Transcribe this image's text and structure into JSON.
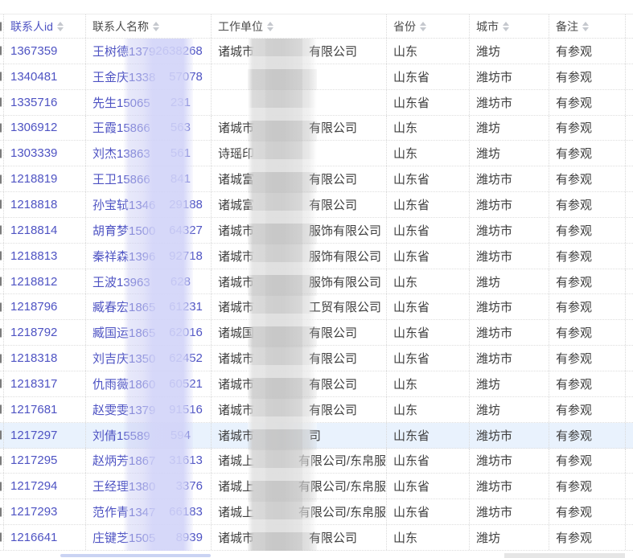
{
  "table": {
    "columns": [
      {
        "key": "id",
        "label": "联系人id",
        "sortable": true
      },
      {
        "key": "name",
        "label": "联系人名称",
        "sortable": true
      },
      {
        "key": "unit",
        "label": "工作单位",
        "sortable": true
      },
      {
        "key": "province",
        "label": "省份",
        "sortable": true
      },
      {
        "key": "city",
        "label": "城市",
        "sortable": true
      },
      {
        "key": "note",
        "label": "备注",
        "sortable": true
      }
    ],
    "colors": {
      "id_name_text": "#4e53c3",
      "body_text": "#3e3e3e",
      "header_text": "#4c4c4c",
      "highlight_row": "#e9f2fd",
      "name_redaction_band": "#d1d3f8",
      "unit_redaction_band": "#d6d6d6"
    },
    "rows": [
      {
        "id": "1367359",
        "name_pre": "王树德1379",
        "name_mid": "2638",
        "name_tail": "268",
        "unit_pre": "诸城市",
        "unit_tail": "有限公司",
        "province": "山东",
        "city": "潍坊",
        "note": "有参观",
        "highlight": false
      },
      {
        "id": "1340481",
        "name_pre": "王金庆1338",
        "name_mid": "",
        "name_tail": "57078",
        "unit_pre": "",
        "unit_tail": "",
        "province": "山东省",
        "city": "潍坊市",
        "note": "有参观",
        "highlight": false
      },
      {
        "id": "1335716",
        "name_pre": "先生15065",
        "name_mid": "",
        "name_tail": "231",
        "unit_pre": "",
        "unit_tail": "",
        "province": "山东省",
        "city": "潍坊市",
        "note": "有参观",
        "highlight": false
      },
      {
        "id": "1306912",
        "name_pre": "王霞15866",
        "name_mid": "",
        "name_tail": "563",
        "unit_pre": "诸城市",
        "unit_tail": "有限公司",
        "province": "山东",
        "city": "潍坊",
        "note": "有参观",
        "highlight": false
      },
      {
        "id": "1303339",
        "name_pre": "刘杰13863",
        "name_mid": "",
        "name_tail": "561",
        "unit_pre": "诗瑶印",
        "unit_tail": "",
        "province": "山东",
        "city": "潍坊",
        "note": "有参观",
        "highlight": false
      },
      {
        "id": "1218819",
        "name_pre": "王卫15866",
        "name_mid": "",
        "name_tail": "841",
        "unit_pre": "诸城富",
        "unit_tail": "有限公司",
        "province": "山东省",
        "city": "潍坊市",
        "note": "有参观",
        "highlight": false
      },
      {
        "id": "1218818",
        "name_pre": "孙宝轼1346",
        "name_mid": "",
        "name_tail": "29188",
        "unit_pre": "诸城富",
        "unit_tail": "有限公司",
        "province": "山东省",
        "city": "潍坊市",
        "note": "有参观",
        "highlight": false
      },
      {
        "id": "1218814",
        "name_pre": "胡育梦1500",
        "name_mid": "",
        "name_tail": "64327",
        "unit_pre": "诸城市",
        "unit_tail": "服饰有限公司",
        "province": "山东省",
        "city": "潍坊市",
        "note": "有参观",
        "highlight": false
      },
      {
        "id": "1218813",
        "name_pre": "秦祥森1396",
        "name_mid": "",
        "name_tail": "92718",
        "unit_pre": "诸城市",
        "unit_tail": "服饰有限公司",
        "province": "山东省",
        "city": "潍坊市",
        "note": "有参观",
        "highlight": false
      },
      {
        "id": "1218812",
        "name_pre": "王波13963",
        "name_mid": "",
        "name_tail": "628",
        "unit_pre": "诸城市",
        "unit_tail": "服饰有限公司",
        "province": "山东",
        "city": "潍坊",
        "note": "有参观",
        "highlight": false
      },
      {
        "id": "1218796",
        "name_pre": "臧春宏1865",
        "name_mid": "",
        "name_tail": "61231",
        "unit_pre": "诸城市",
        "unit_tail": "工贸有限公司",
        "province": "山东省",
        "city": "潍坊市",
        "note": "有参观",
        "highlight": false
      },
      {
        "id": "1218792",
        "name_pre": "臧国运1865",
        "name_mid": "",
        "name_tail": "62016",
        "unit_pre": "诸城国",
        "unit_tail": "有限公司",
        "province": "山东省",
        "city": "潍坊市",
        "note": "有参观",
        "highlight": false
      },
      {
        "id": "1218318",
        "name_pre": "刘吉庆1350",
        "name_mid": "",
        "name_tail": "62452",
        "unit_pre": "诸城市",
        "unit_tail": "有限公司",
        "province": "山东省",
        "city": "潍坊市",
        "note": "有参观",
        "highlight": false
      },
      {
        "id": "1218317",
        "name_pre": "仇雨薇1860",
        "name_mid": "",
        "name_tail": "60521",
        "unit_pre": "诸城市",
        "unit_tail": "有限公司",
        "province": "山东",
        "city": "潍坊",
        "note": "有参观",
        "highlight": false
      },
      {
        "id": "1217681",
        "name_pre": "赵雯雯1379",
        "name_mid": "",
        "name_tail": "91516",
        "unit_pre": "诸城市",
        "unit_tail": "有限公司",
        "province": "山东",
        "city": "潍坊",
        "note": "有参观",
        "highlight": false
      },
      {
        "id": "1217297",
        "name_pre": "刘倩15589",
        "name_mid": "",
        "name_tail": "594",
        "unit_pre": "诸城市",
        "unit_tail": "司",
        "province": "山东省",
        "city": "潍坊市",
        "note": "有参观",
        "highlight": true
      },
      {
        "id": "1217295",
        "name_pre": "赵炳芳1867",
        "name_mid": "",
        "name_tail": "31613",
        "unit_pre": "诸城上",
        "unit_tail": "有限公司/东帛服",
        "province": "山东省",
        "city": "潍坊市",
        "note": "有参观",
        "highlight": false
      },
      {
        "id": "1217294",
        "name_pre": "王经理1380",
        "name_mid": "",
        "name_tail": "3376",
        "unit_pre": "诸城上",
        "unit_tail": "有限公司/东帛服",
        "province": "山东省",
        "city": "潍坊市",
        "note": "有参观",
        "highlight": false
      },
      {
        "id": "1217293",
        "name_pre": "范作青1347",
        "name_mid": "",
        "name_tail": "66183",
        "unit_pre": "诸城上",
        "unit_tail": "有限公司/东帛服",
        "province": "山东省",
        "city": "潍坊市",
        "note": "有参观",
        "highlight": false
      },
      {
        "id": "1216641",
        "name_pre": "庄键芝1505",
        "name_mid": "",
        "name_tail": "8939",
        "unit_pre": "诸城市",
        "unit_tail": "有限公司",
        "province": "山东",
        "city": "潍坊",
        "note": "有参观",
        "highlight": false
      }
    ]
  }
}
